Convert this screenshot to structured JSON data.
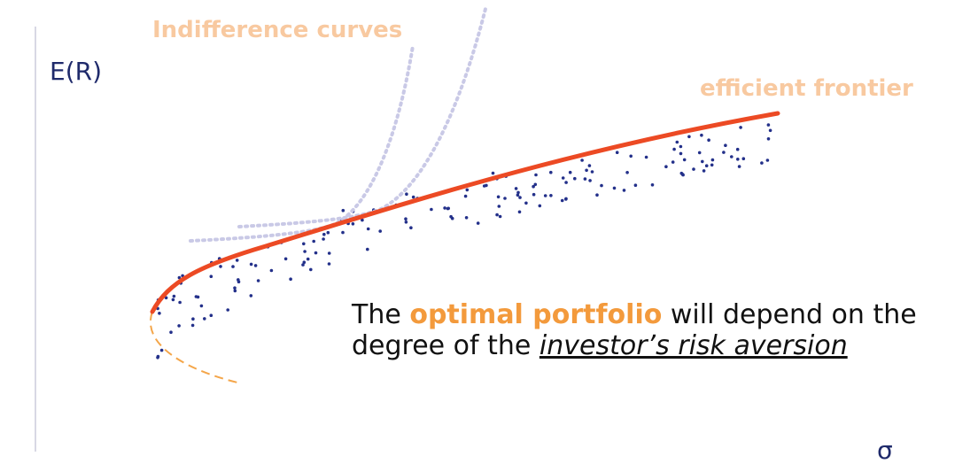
{
  "axes": {
    "y_label": "E(R)",
    "x_label": "σ"
  },
  "labels": {
    "indifference": "Indifference curves",
    "frontier": "efficient frontier"
  },
  "caption": {
    "line1": [
      "The ",
      "optimal portfolio",
      " will depend on the"
    ],
    "line2": [
      "degree of the ",
      "investor’s risk aversion"
    ]
  }
}
